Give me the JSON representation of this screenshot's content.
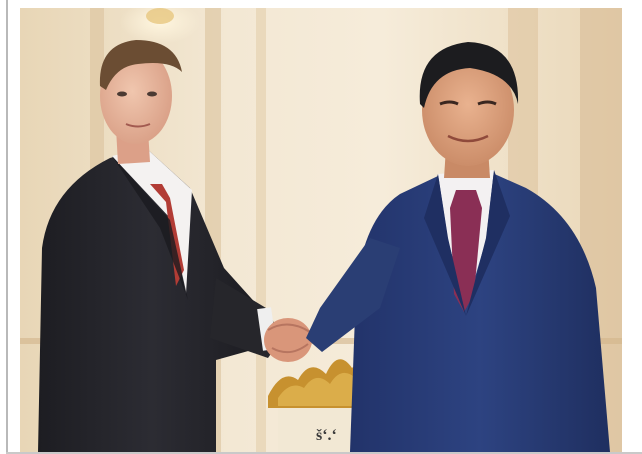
{
  "photo": {
    "type": "photograph",
    "background_sign_text": "šʻ.ʻ",
    "colors": {
      "wall": "#f0e3cb",
      "left_suit": "#26262b",
      "right_suit": "#2a3e74",
      "left_tie": "#b23c35",
      "right_tie": "#8a2f55",
      "gold_decor": "#c7912f"
    }
  }
}
